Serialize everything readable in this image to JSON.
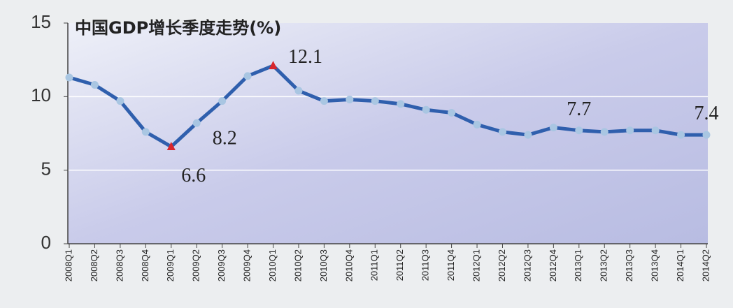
{
  "chart_data": {
    "type": "line",
    "title": "中国GDP增长季度走势(%)",
    "categories": [
      "2008Q1",
      "2008Q2",
      "2008Q3",
      "2008Q4",
      "2009Q1",
      "2009Q2",
      "2009Q3",
      "2009Q4",
      "2010Q1",
      "2010Q2",
      "2010Q3",
      "2010Q4",
      "2011Q1",
      "2011Q2",
      "2011Q3",
      "2011Q4",
      "2012Q1",
      "2012Q2",
      "2012Q3",
      "2012Q4",
      "2013Q1",
      "2013Q2",
      "2013Q3",
      "2013Q4",
      "2014Q1",
      "2014Q2"
    ],
    "series": [
      {
        "name": "GDP",
        "color": "#2f5fad",
        "values": [
          11.3,
          10.8,
          9.7,
          7.6,
          6.6,
          8.2,
          9.7,
          11.4,
          12.1,
          10.4,
          9.7,
          9.8,
          9.7,
          9.5,
          9.1,
          8.9,
          8.1,
          7.6,
          7.4,
          7.9,
          7.7,
          7.6,
          7.7,
          7.7,
          7.4,
          7.4
        ],
        "value_labels": [
          null,
          null,
          null,
          null,
          "6.6",
          "8.2",
          null,
          null,
          "12.1",
          null,
          null,
          null,
          null,
          null,
          null,
          null,
          null,
          null,
          null,
          null,
          "7.7",
          null,
          null,
          null,
          null,
          "7.4"
        ]
      }
    ],
    "ylim": [
      0,
      15
    ],
    "yticks": [
      0,
      5,
      10,
      15
    ],
    "grid": true
  }
}
